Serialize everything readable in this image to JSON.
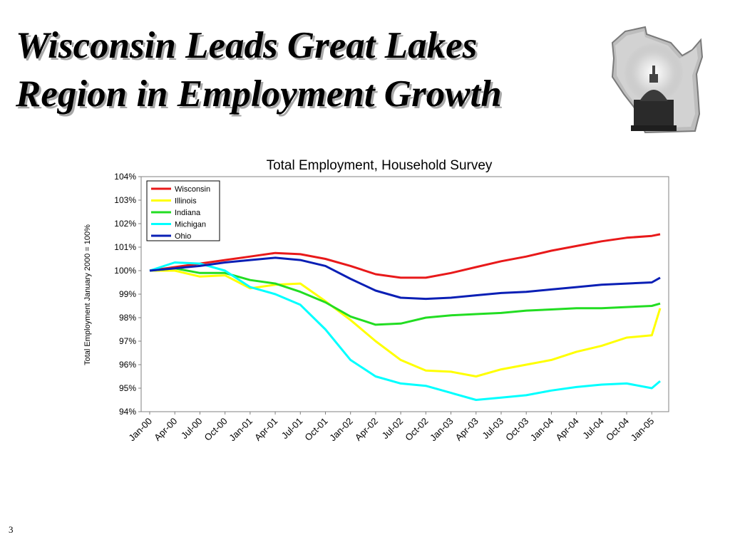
{
  "slide": {
    "title_line1": "Wisconsin Leads Great Lakes",
    "title_line2": "Region in Employment Growth",
    "page_number": "3",
    "logo_icon": "wisconsin-capitol-logo-icon"
  },
  "chart_data": {
    "type": "line",
    "title": "Total Employment, Household Survey",
    "xlabel": "",
    "ylabel": "Total Employment January 2000 = 100%",
    "ylim": [
      94,
      104
    ],
    "yticks": [
      94,
      95,
      96,
      97,
      98,
      99,
      100,
      101,
      102,
      103,
      104
    ],
    "ytick_suffix": "%",
    "x_start": "Jan-00",
    "x_end": "Jan-05",
    "xtick_labels": [
      "Jan-00",
      "Apr-00",
      "Jul-00",
      "Oct-00",
      "Jan-01",
      "Apr-01",
      "Jul-01",
      "Oct-01",
      "Jan-02",
      "Apr-02",
      "Jul-02",
      "Oct-02",
      "Jan-03",
      "Apr-03",
      "Jul-03",
      "Oct-03",
      "Jan-04",
      "Apr-04",
      "Jul-04",
      "Oct-04",
      "Jan-05"
    ],
    "grid": false,
    "legend_placement": "top-left",
    "x": [
      "Jan-00",
      "Apr-00",
      "Jul-00",
      "Oct-00",
      "Jan-01",
      "Apr-01",
      "Jul-01",
      "Oct-01",
      "Jan-02",
      "Apr-02",
      "Jul-02",
      "Oct-02",
      "Jan-03",
      "Apr-03",
      "Jul-03",
      "Oct-03",
      "Jan-04",
      "Apr-04",
      "Jul-04",
      "Oct-04",
      "Jan-05",
      "Feb-05"
    ],
    "series": [
      {
        "name": "Wisconsin",
        "color": "#e8191a",
        "values": [
          100.0,
          100.15,
          100.3,
          100.45,
          100.6,
          100.75,
          100.7,
          100.5,
          100.2,
          99.85,
          99.7,
          99.7,
          99.9,
          100.15,
          100.4,
          100.6,
          100.85,
          101.05,
          101.25,
          101.4,
          101.48,
          101.55
        ]
      },
      {
        "name": "Illinois",
        "color": "#ffff00",
        "values": [
          100.0,
          100.0,
          99.75,
          99.8,
          99.25,
          99.4,
          99.45,
          98.7,
          97.9,
          97.0,
          96.2,
          95.75,
          95.7,
          95.5,
          95.8,
          96.0,
          96.2,
          96.55,
          96.8,
          97.15,
          97.25,
          98.4
        ]
      },
      {
        "name": "Indiana",
        "color": "#22dd22",
        "values": [
          100.0,
          100.1,
          99.9,
          99.9,
          99.6,
          99.45,
          99.1,
          98.65,
          98.05,
          97.7,
          97.75,
          98.0,
          98.1,
          98.15,
          98.2,
          98.3,
          98.35,
          98.4,
          98.4,
          98.45,
          98.5,
          98.6
        ]
      },
      {
        "name": "Michigan",
        "color": "#00ffff",
        "values": [
          100.0,
          100.35,
          100.3,
          100.0,
          99.3,
          99.0,
          98.55,
          97.5,
          96.2,
          95.5,
          95.2,
          95.1,
          94.8,
          94.5,
          94.6,
          94.7,
          94.9,
          95.05,
          95.15,
          95.2,
          95.0,
          95.3
        ]
      },
      {
        "name": "Ohio",
        "color": "#0a1fb5",
        "values": [
          100.0,
          100.1,
          100.2,
          100.35,
          100.45,
          100.55,
          100.45,
          100.2,
          99.65,
          99.15,
          98.85,
          98.8,
          98.85,
          98.95,
          99.05,
          99.1,
          99.2,
          99.3,
          99.4,
          99.45,
          99.5,
          99.7
        ]
      }
    ]
  }
}
